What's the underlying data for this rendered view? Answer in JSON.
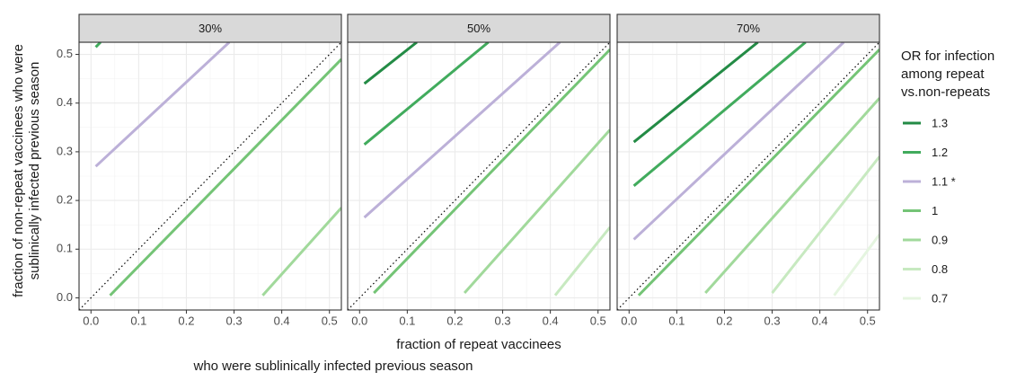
{
  "chart_data": {
    "type": "line",
    "x_label": [
      "fraction of repeat vaccinees",
      "who were sublinically infected previous season"
    ],
    "y_label": [
      "fraction of non-repeat vaccinees who were",
      "sublinically infected previous season"
    ],
    "xlim": [
      -0.025,
      0.525
    ],
    "ylim": [
      -0.025,
      0.525
    ],
    "xticks": [
      {
        "value": 0,
        "label": "0.0"
      },
      0.1,
      0.2,
      0.3,
      0.4,
      0.5
    ],
    "yticks": [
      {
        "value": 0,
        "label": "0.0"
      },
      0.1,
      0.2,
      0.3,
      0.4,
      0.5
    ],
    "grid": true,
    "legend": {
      "position": "right",
      "title": [
        "OR for infection",
        "among repeat",
        "vs.non-repeats"
      ],
      "entries": [
        {
          "name": "1.3",
          "color": "#238b45"
        },
        {
          "name": "1.2",
          "color": "#41ab5d"
        },
        {
          "name": "1.1 *",
          "color": "#bcb0d8"
        },
        {
          "name": "1",
          "color": "#74c476"
        },
        {
          "name": "0.9",
          "color": "#a1d99b"
        },
        {
          "name": "0.8",
          "color": "#c7e9c0"
        },
        {
          "name": "0.7",
          "color": "#e5f5e0"
        }
      ]
    },
    "panels": [
      {
        "title": "30%",
        "series": [
          {
            "name": "1.2",
            "x": [
              0.01,
              0.02
            ],
            "values": [
              0.515,
              0.525
            ]
          },
          {
            "name": "1.1 *",
            "x": [
              0.01,
              0.29
            ],
            "values": [
              0.27,
              0.525
            ]
          },
          {
            "name": "1",
            "x": [
              0.04,
              0.525
            ],
            "values": [
              0.005,
              0.49
            ]
          },
          {
            "name": "0.9",
            "x": [
              0.36,
              0.525
            ],
            "values": [
              0.005,
              0.185
            ]
          }
        ]
      },
      {
        "title": "50%",
        "series": [
          {
            "name": "1.3",
            "x": [
              0.01,
              0.12
            ],
            "values": [
              0.44,
              0.525
            ]
          },
          {
            "name": "1.2",
            "x": [
              0.01,
              0.27
            ],
            "values": [
              0.315,
              0.525
            ]
          },
          {
            "name": "1.1 *",
            "x": [
              0.01,
              0.42
            ],
            "values": [
              0.165,
              0.525
            ]
          },
          {
            "name": "1",
            "x": [
              0.03,
              0.525
            ],
            "values": [
              0.01,
              0.51
            ]
          },
          {
            "name": "0.9",
            "x": [
              0.22,
              0.525
            ],
            "values": [
              0.01,
              0.345
            ]
          },
          {
            "name": "0.8",
            "x": [
              0.41,
              0.525
            ],
            "values": [
              0.005,
              0.145
            ]
          }
        ]
      },
      {
        "title": "70%",
        "series": [
          {
            "name": "1.3",
            "x": [
              0.01,
              0.27
            ],
            "values": [
              0.32,
              0.525
            ]
          },
          {
            "name": "1.2",
            "x": [
              0.01,
              0.37
            ],
            "values": [
              0.23,
              0.525
            ]
          },
          {
            "name": "1.1 *",
            "x": [
              0.01,
              0.45
            ],
            "values": [
              0.12,
              0.525
            ]
          },
          {
            "name": "1",
            "x": [
              0.02,
              0.525
            ],
            "values": [
              0.005,
              0.51
            ]
          },
          {
            "name": "0.9",
            "x": [
              0.16,
              0.525
            ],
            "values": [
              0.01,
              0.41
            ]
          },
          {
            "name": "0.8",
            "x": [
              0.3,
              0.525
            ],
            "values": [
              0.01,
              0.29
            ]
          },
          {
            "name": "0.7",
            "x": [
              0.43,
              0.525
            ],
            "values": [
              0.005,
              0.13
            ]
          }
        ]
      }
    ]
  }
}
